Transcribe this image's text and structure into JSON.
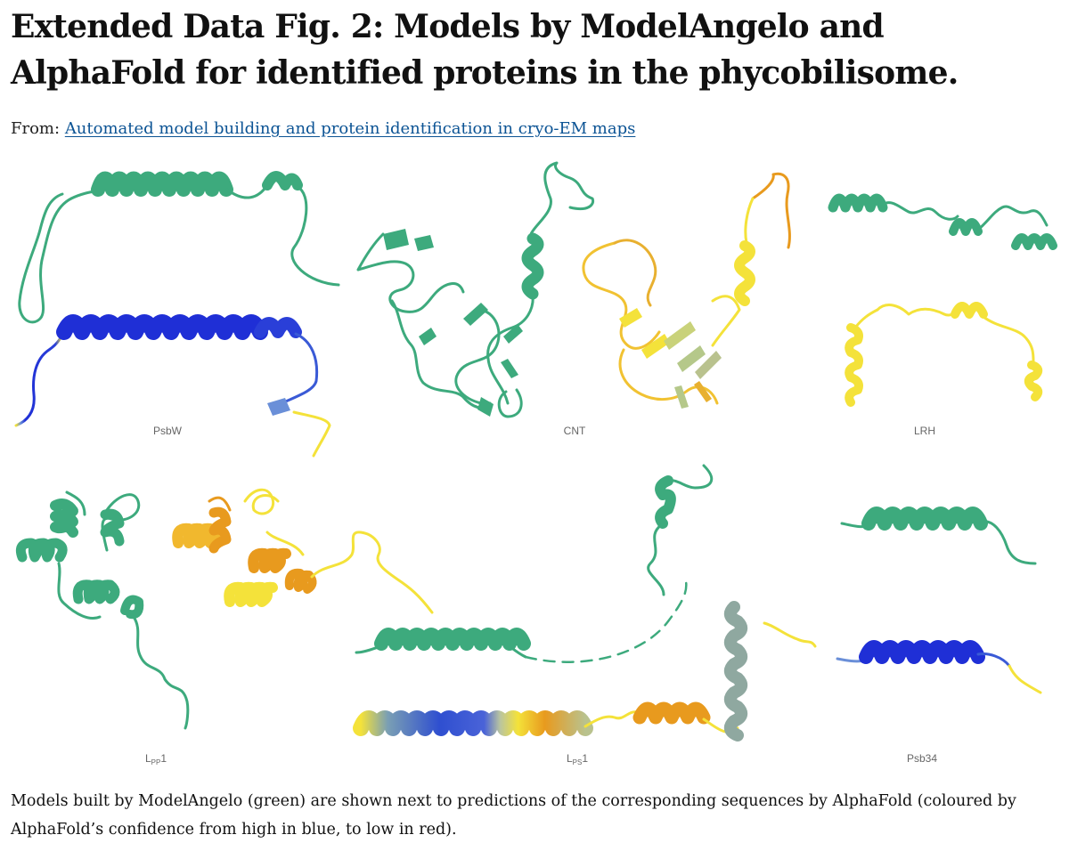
{
  "figure": {
    "title": "Extended Data Fig. 2: Models by ModelAngelo and AlphaFold for identified proteins in the phycobilisome.",
    "from_label": "From:",
    "source_link": "Automated model building and protein identification in cryo-EM maps",
    "caption": "Models built by ModelAngelo (green) are shown next to predictions of the corresponding sequences by AlphaFold (coloured by AlphaFold’s confidence from high in blue, to low in red).",
    "panels": [
      {
        "label": "PsbW"
      },
      {
        "label": "CNT"
      },
      {
        "label": "LRH"
      },
      {
        "label_main": "L",
        "label_sub": "PP",
        "label_suffix": "1"
      },
      {
        "label_main": "L",
        "label_sub": "PS",
        "label_suffix": "1"
      },
      {
        "label": "Psb34"
      }
    ]
  },
  "colors": {
    "modelangelo": "#3daa7d",
    "alphafold_high": "#1f2fd6",
    "alphafold_mid": "#8fa8a0",
    "alphafold_low_yellow": "#f4e23a",
    "alphafold_orange": "#e89a1e",
    "link": "#0b5394"
  }
}
